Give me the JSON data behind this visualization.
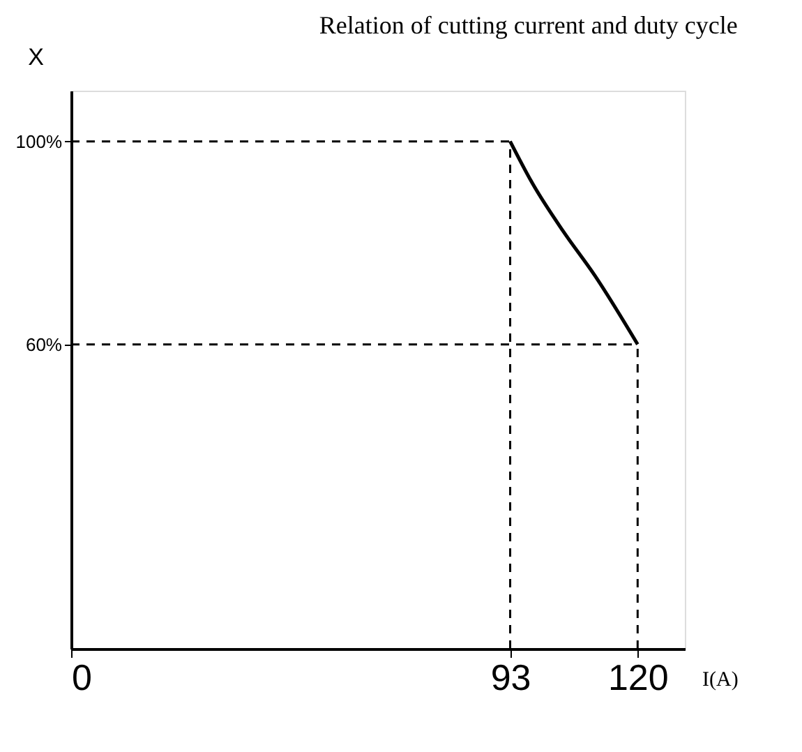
{
  "chart_data": {
    "type": "line",
    "title": "Relation of cutting current and duty cycle",
    "xlabel": "I(A)",
    "ylabel": "X",
    "x": [
      93,
      97.8,
      104.3,
      110.9,
      120
    ],
    "series": [
      {
        "color": "#000000",
        "values": [
          100,
          91.6,
          82.2,
          73.6,
          60
        ]
      }
    ],
    "xlim": [
      0,
      130
    ],
    "xticks": [
      0,
      93,
      120
    ],
    "ylim": [
      0,
      110
    ],
    "yticks": [
      {
        "value": 60,
        "label": "60%"
      },
      {
        "value": 100,
        "label": "100%"
      }
    ],
    "ref_lines": [
      {
        "axis": "y",
        "value": 100,
        "line_style": "dashed",
        "color": "#000000"
      },
      {
        "axis": "y",
        "value": 60,
        "line_style": "dashed",
        "color": "#000000"
      },
      {
        "axis": "x",
        "value": 93,
        "line_style": "dashed",
        "color": "#000000"
      },
      {
        "axis": "x",
        "value": 120,
        "line_style": "dashed",
        "color": "#000000"
      }
    ],
    "grid": false,
    "marker": "none",
    "line_style": "solid"
  }
}
